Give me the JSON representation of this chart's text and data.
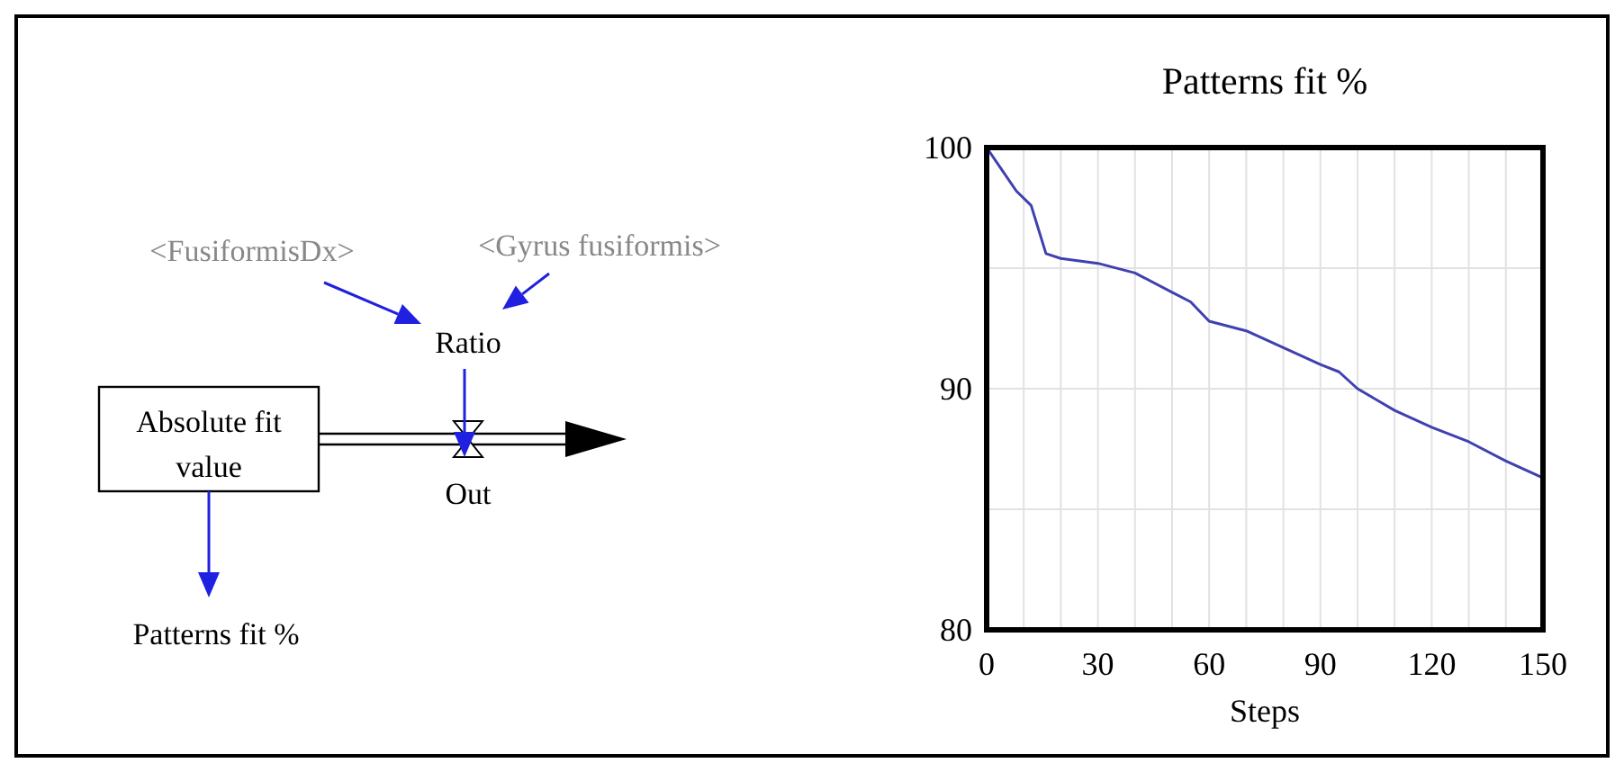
{
  "chart_data": [
    {
      "type": "other",
      "annotations": [
        "<FusiformisDx>",
        "<Gyrus fusiformis>",
        "Ratio",
        "Absolute fit value",
        "Out",
        "Patterns fit %"
      ]
    },
    {
      "type": "line",
      "title": "Patterns fit %",
      "xlabel": "Steps",
      "grid": true,
      "marker": "none",
      "line_style": "solid",
      "xlim": [
        0,
        150
      ],
      "ylim": [
        80,
        100
      ],
      "xticks": [
        0,
        {
          "value": 10,
          "label": null
        },
        {
          "value": 20,
          "label": null
        },
        30,
        {
          "value": 40,
          "label": null
        },
        {
          "value": 50,
          "label": null
        },
        60,
        {
          "value": 70,
          "label": null
        },
        {
          "value": 80,
          "label": null
        },
        90,
        {
          "value": 100,
          "label": null
        },
        {
          "value": 110,
          "label": null
        },
        120,
        {
          "value": 130,
          "label": null
        },
        {
          "value": 140,
          "label": null
        },
        150
      ],
      "yticks": [
        80,
        {
          "value": 85,
          "label": null
        },
        90,
        {
          "value": 95,
          "label": null
        },
        100
      ],
      "series": [
        {
          "color": "#4040b0",
          "x": [
            0,
            4,
            8,
            12,
            16,
            20,
            30,
            40,
            50,
            55,
            60,
            70,
            80,
            90,
            95,
            100,
            110,
            120,
            130,
            140,
            150
          ],
          "values": [
            100,
            99.1,
            98.2,
            97.6,
            95.6,
            95.4,
            95.2,
            94.8,
            94.0,
            93.6,
            92.8,
            92.4,
            91.7,
            91.0,
            90.7,
            90.0,
            89.1,
            88.4,
            87.8,
            87.0,
            86.3
          ]
        }
      ]
    }
  ]
}
